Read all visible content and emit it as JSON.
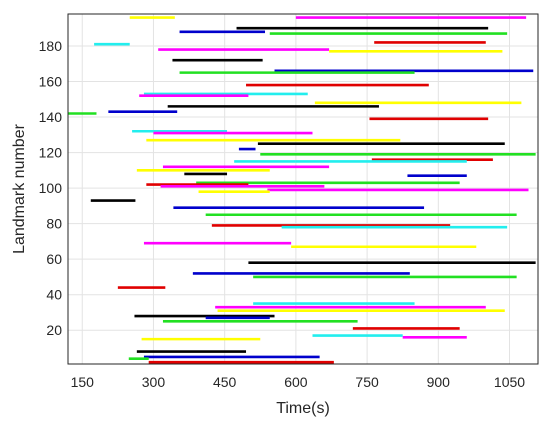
{
  "chart_data": {
    "type": "timeline",
    "xlabel": "Time(s)",
    "ylabel": "Landmark number",
    "xlim": [
      120,
      1110
    ],
    "ylim": [
      1,
      198
    ],
    "xticks": [
      150,
      300,
      450,
      600,
      750,
      900,
      1050
    ],
    "yticks": [
      20,
      40,
      60,
      80,
      100,
      120,
      140,
      160,
      180
    ],
    "grid": true,
    "legend": "none",
    "colors": {
      "black": "#000000",
      "blue": "#0000cc",
      "green": "#22e022",
      "red": "#e00000",
      "yellow": "#ffff00",
      "magenta": "#ff00ff",
      "cyan": "#22eeee"
    },
    "segments": [
      {
        "landmark": 196,
        "start": 250,
        "end": 345,
        "color": "yellow"
      },
      {
        "landmark": 196,
        "start": 600,
        "end": 1085,
        "color": "magenta"
      },
      {
        "landmark": 190,
        "start": 475,
        "end": 1005,
        "color": "black"
      },
      {
        "landmark": 188,
        "start": 355,
        "end": 535,
        "color": "blue"
      },
      {
        "landmark": 187,
        "start": 545,
        "end": 1045,
        "color": "green"
      },
      {
        "landmark": 182,
        "start": 765,
        "end": 1000,
        "color": "red"
      },
      {
        "landmark": 181,
        "start": 175,
        "end": 250,
        "color": "cyan"
      },
      {
        "landmark": 178,
        "start": 310,
        "end": 670,
        "color": "magenta"
      },
      {
        "landmark": 177,
        "start": 670,
        "end": 1035,
        "color": "yellow"
      },
      {
        "landmark": 172,
        "start": 340,
        "end": 530,
        "color": "black"
      },
      {
        "landmark": 166,
        "start": 555,
        "end": 1100,
        "color": "blue"
      },
      {
        "landmark": 165,
        "start": 355,
        "end": 850,
        "color": "green"
      },
      {
        "landmark": 158,
        "start": 495,
        "end": 880,
        "color": "red"
      },
      {
        "landmark": 153,
        "start": 280,
        "end": 625,
        "color": "cyan"
      },
      {
        "landmark": 152,
        "start": 270,
        "end": 500,
        "color": "magenta"
      },
      {
        "landmark": 148,
        "start": 640,
        "end": 1075,
        "color": "yellow"
      },
      {
        "landmark": 146,
        "start": 330,
        "end": 775,
        "color": "black"
      },
      {
        "landmark": 143,
        "start": 205,
        "end": 350,
        "color": "blue"
      },
      {
        "landmark": 142,
        "start": 120,
        "end": 180,
        "color": "green"
      },
      {
        "landmark": 139,
        "start": 755,
        "end": 1005,
        "color": "red"
      },
      {
        "landmark": 132,
        "start": 255,
        "end": 455,
        "color": "cyan"
      },
      {
        "landmark": 131,
        "start": 300,
        "end": 635,
        "color": "magenta"
      },
      {
        "landmark": 127,
        "start": 285,
        "end": 820,
        "color": "yellow"
      },
      {
        "landmark": 125,
        "start": 520,
        "end": 1040,
        "color": "black"
      },
      {
        "landmark": 122,
        "start": 480,
        "end": 515,
        "color": "blue"
      },
      {
        "landmark": 119,
        "start": 525,
        "end": 1105,
        "color": "green"
      },
      {
        "landmark": 116,
        "start": 760,
        "end": 1015,
        "color": "red"
      },
      {
        "landmark": 115,
        "start": 470,
        "end": 600,
        "color": "cyan"
      },
      {
        "landmark": 115,
        "start": 600,
        "end": 960,
        "color": "cyan"
      },
      {
        "landmark": 112,
        "start": 320,
        "end": 670,
        "color": "magenta"
      },
      {
        "landmark": 110,
        "start": 265,
        "end": 545,
        "color": "yellow"
      },
      {
        "landmark": 108,
        "start": 365,
        "end": 455,
        "color": "black"
      },
      {
        "landmark": 107,
        "start": 835,
        "end": 960,
        "color": "blue"
      },
      {
        "landmark": 103,
        "start": 390,
        "end": 945,
        "color": "green"
      },
      {
        "landmark": 102,
        "start": 285,
        "end": 500,
        "color": "red"
      },
      {
        "landmark": 101,
        "start": 315,
        "end": 660,
        "color": "magenta"
      },
      {
        "landmark": 99,
        "start": 540,
        "end": 1090,
        "color": "magenta"
      },
      {
        "landmark": 98,
        "start": 395,
        "end": 545,
        "color": "yellow"
      },
      {
        "landmark": 93,
        "start": 168,
        "end": 262,
        "color": "black"
      },
      {
        "landmark": 89,
        "start": 342,
        "end": 870,
        "color": "blue"
      },
      {
        "landmark": 85,
        "start": 410,
        "end": 1065,
        "color": "green"
      },
      {
        "landmark": 79,
        "start": 423,
        "end": 925,
        "color": "red"
      },
      {
        "landmark": 78,
        "start": 570,
        "end": 1045,
        "color": "cyan"
      },
      {
        "landmark": 69,
        "start": 280,
        "end": 590,
        "color": "magenta"
      },
      {
        "landmark": 67,
        "start": 590,
        "end": 980,
        "color": "yellow"
      },
      {
        "landmark": 58,
        "start": 500,
        "end": 1105,
        "color": "black"
      },
      {
        "landmark": 52,
        "start": 383,
        "end": 840,
        "color": "blue"
      },
      {
        "landmark": 50,
        "start": 510,
        "end": 1065,
        "color": "green"
      },
      {
        "landmark": 44,
        "start": 225,
        "end": 325,
        "color": "red"
      },
      {
        "landmark": 35,
        "start": 510,
        "end": 850,
        "color": "cyan"
      },
      {
        "landmark": 33,
        "start": 430,
        "end": 1000,
        "color": "magenta"
      },
      {
        "landmark": 31,
        "start": 435,
        "end": 1040,
        "color": "yellow"
      },
      {
        "landmark": 28,
        "start": 260,
        "end": 555,
        "color": "black"
      },
      {
        "landmark": 27,
        "start": 410,
        "end": 545,
        "color": "blue"
      },
      {
        "landmark": 25,
        "start": 320,
        "end": 730,
        "color": "green"
      },
      {
        "landmark": 21,
        "start": 720,
        "end": 945,
        "color": "red"
      },
      {
        "landmark": 17,
        "start": 635,
        "end": 825,
        "color": "cyan"
      },
      {
        "landmark": 16,
        "start": 825,
        "end": 960,
        "color": "magenta"
      },
      {
        "landmark": 15,
        "start": 275,
        "end": 525,
        "color": "yellow"
      },
      {
        "landmark": 8,
        "start": 265,
        "end": 495,
        "color": "black"
      },
      {
        "landmark": 5,
        "start": 280,
        "end": 650,
        "color": "blue"
      },
      {
        "landmark": 4,
        "start": 248,
        "end": 290,
        "color": "green"
      },
      {
        "landmark": 2,
        "start": 290,
        "end": 680,
        "color": "red"
      }
    ]
  }
}
